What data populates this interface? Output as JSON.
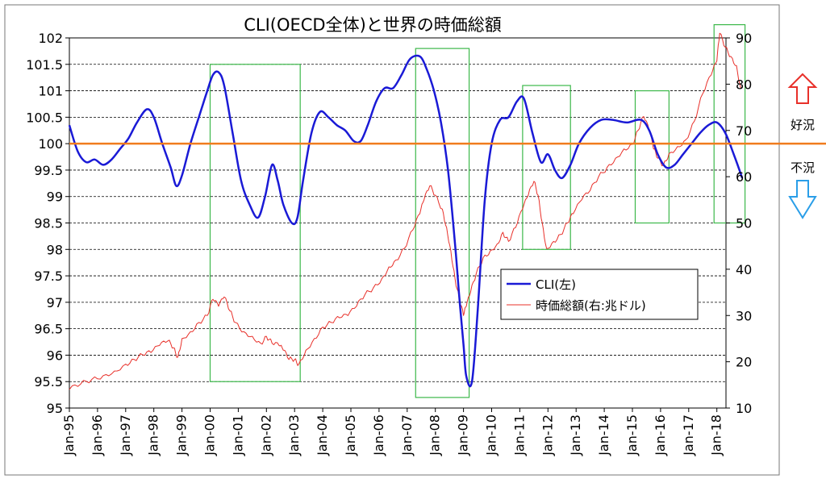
{
  "chart_data": {
    "type": "line",
    "title": "CLI(OECD全体)と世界の時価総額",
    "x_categories": [
      "Jan-95",
      "Jan-96",
      "Jan-97",
      "Jan-98",
      "Jan-99",
      "Jan-00",
      "Jan-01",
      "Jan-02",
      "Jan-03",
      "Jan-04",
      "Jan-05",
      "Jan-06",
      "Jan-07",
      "Jan-08",
      "Jan-09",
      "Jan-10",
      "Jan-11",
      "Jan-12",
      "Jan-13",
      "Jan-14",
      "Jan-15",
      "Jan-16",
      "Jan-17",
      "Jan-18"
    ],
    "y_left": {
      "min": 95,
      "max": 102,
      "ticks": [
        "95",
        "95.5",
        "96",
        "96.5",
        "97",
        "97.5",
        "98",
        "98.5",
        "99",
        "99.5",
        "100",
        "100.5",
        "101",
        "101.5",
        "102"
      ]
    },
    "y_right": {
      "min": 10,
      "max": 90,
      "ticks": [
        "10",
        "20",
        "30",
        "40",
        "50",
        "60",
        "70",
        "80",
        "90"
      ]
    },
    "grid": "horizontal dashed",
    "reference_line": {
      "value": 100,
      "color": "#f07c1e"
    },
    "series": [
      {
        "name": "CLI(左)",
        "axis": "left",
        "color": "#1a1ad6",
        "x": [
          1995.0,
          1995.3,
          1995.6,
          1995.9,
          1996.2,
          1996.5,
          1996.8,
          1997.1,
          1997.4,
          1997.75,
          1998.0,
          1998.3,
          1998.6,
          1998.8,
          1999.0,
          1999.3,
          1999.6,
          1999.9,
          2000.1,
          2000.3,
          2000.5,
          2000.8,
          2001.1,
          2001.4,
          2001.7,
          2001.95,
          2002.2,
          2002.4,
          2002.6,
          2002.9,
          2003.1,
          2003.3,
          2003.6,
          2003.9,
          2004.2,
          2004.5,
          2004.8,
          2005.1,
          2005.35,
          2005.6,
          2005.9,
          2006.2,
          2006.5,
          2006.8,
          2007.1,
          2007.45,
          2007.7,
          2007.95,
          2008.2,
          2008.45,
          2008.7,
          2008.85,
          2009.0,
          2009.1,
          2009.3,
          2009.5,
          2009.75,
          2010.0,
          2010.3,
          2010.6,
          2010.9,
          2011.15,
          2011.45,
          2011.75,
          2012.0,
          2012.25,
          2012.5,
          2012.8,
          2013.1,
          2013.5,
          2013.9,
          2014.3,
          2014.8,
          2015.3,
          2015.6,
          2015.9,
          2016.2,
          2016.5,
          2016.8,
          2017.1,
          2017.4,
          2017.7,
          2018.0,
          2018.3,
          2018.6,
          2018.9
        ],
        "y": [
          100.35,
          99.85,
          99.65,
          99.7,
          99.6,
          99.7,
          99.9,
          100.1,
          100.4,
          100.65,
          100.5,
          100.0,
          99.55,
          99.2,
          99.4,
          100.0,
          100.5,
          101.0,
          101.3,
          101.35,
          101.1,
          100.2,
          99.3,
          98.85,
          98.6,
          99.0,
          99.6,
          99.3,
          98.85,
          98.5,
          98.6,
          99.3,
          100.2,
          100.6,
          100.5,
          100.35,
          100.25,
          100.05,
          100.05,
          100.35,
          100.8,
          101.05,
          101.05,
          101.3,
          101.6,
          101.65,
          101.4,
          101.0,
          100.4,
          99.5,
          98.1,
          97.1,
          96.2,
          95.6,
          95.5,
          96.8,
          98.9,
          100.0,
          100.45,
          100.5,
          100.8,
          100.85,
          100.2,
          99.65,
          99.8,
          99.5,
          99.35,
          99.6,
          100.0,
          100.3,
          100.45,
          100.45,
          100.4,
          100.45,
          100.25,
          99.8,
          99.55,
          99.6,
          99.8,
          100.0,
          100.2,
          100.35,
          100.4,
          100.2,
          99.8,
          99.35
        ]
      },
      {
        "name": "時価総額(右:兆ドル)",
        "axis": "right",
        "color": "#e8302a",
        "x": [
          1995.0,
          1995.4,
          1995.8,
          1996.2,
          1996.6,
          1997.0,
          1997.3,
          1997.6,
          1997.9,
          1998.2,
          1998.5,
          1998.7,
          1998.85,
          1999.0,
          1999.3,
          1999.6,
          1999.9,
          2000.1,
          2000.3,
          2000.5,
          2000.7,
          2000.9,
          2001.2,
          2001.5,
          2001.8,
          2002.0,
          2002.2,
          2002.45,
          2002.6,
          2002.8,
          2003.0,
          2003.15,
          2003.4,
          2003.7,
          2004.0,
          2004.3,
          2004.6,
          2004.9,
          2005.2,
          2005.5,
          2005.8,
          2006.1,
          2006.35,
          2006.6,
          2006.9,
          2007.2,
          2007.45,
          2007.6,
          2007.8,
          2008.0,
          2008.25,
          2008.4,
          2008.55,
          2008.7,
          2008.85,
          2009.0,
          2009.1,
          2009.25,
          2009.45,
          2009.7,
          2009.95,
          2010.2,
          2010.4,
          2010.6,
          2010.85,
          2011.1,
          2011.3,
          2011.5,
          2011.65,
          2011.8,
          2011.95,
          2012.2,
          2012.45,
          2012.7,
          2012.9,
          2013.2,
          2013.5,
          2013.8,
          2014.1,
          2014.4,
          2014.7,
          2015.0,
          2015.2,
          2015.4,
          2015.6,
          2015.75,
          2015.9,
          2016.1,
          2016.3,
          2016.6,
          2016.9,
          2017.2,
          2017.5,
          2017.8,
          2018.0,
          2018.1,
          2018.3,
          2018.5,
          2018.7,
          2018.85
        ],
        "y": [
          14.0,
          15.2,
          16.2,
          17.0,
          18.0,
          19.5,
          20.5,
          21.5,
          22.0,
          23.5,
          24.5,
          23.0,
          21.0,
          25.0,
          26.5,
          28.5,
          30.0,
          33.5,
          32.0,
          34.0,
          31.0,
          28.5,
          26.5,
          25.5,
          24.0,
          25.5,
          24.0,
          23.5,
          22.5,
          20.5,
          20.5,
          19.5,
          22.5,
          25.0,
          27.5,
          28.5,
          29.5,
          30.0,
          32.0,
          34.5,
          36.0,
          38.0,
          40.5,
          42.0,
          44.5,
          48.5,
          52.0,
          55.0,
          58.0,
          56.0,
          53.0,
          49.0,
          44.0,
          38.0,
          33.5,
          30.0,
          32.0,
          35.0,
          39.0,
          42.5,
          44.0,
          45.5,
          48.0,
          46.0,
          49.0,
          53.0,
          56.0,
          59.0,
          56.0,
          50.0,
          44.5,
          46.0,
          47.5,
          50.0,
          52.0,
          55.0,
          57.0,
          60.0,
          62.0,
          64.0,
          66.0,
          67.0,
          70.0,
          73.0,
          70.0,
          66.0,
          64.0,
          62.5,
          65.0,
          66.5,
          68.0,
          72.0,
          78.0,
          82.0,
          85.0,
          91.0,
          88.0,
          86.0,
          84.0,
          79.0
        ]
      }
    ],
    "highlight_boxes": [
      {
        "x0": 2000.0,
        "x1": 2003.2,
        "y0_left": 101.5,
        "y1_left": 95.5
      },
      {
        "x0": 2007.3,
        "x1": 2009.2,
        "y0_left": 101.8,
        "y1_left": 95.2
      },
      {
        "x0": 2011.1,
        "x1": 2012.8,
        "y0_left": 101.1,
        "y1_left": 98.0
      },
      {
        "x0": 2015.1,
        "x1": 2016.3,
        "y0_left": 101.0,
        "y1_left": 98.5
      },
      {
        "x0": 2017.9,
        "x1": 2019.0,
        "y0_left": 102.25,
        "y1_left": 98.5
      }
    ],
    "legend": {
      "placement": "center-right",
      "entries": [
        "CLI(左)",
        "時価総額(右:兆ドル)"
      ]
    },
    "side_labels": {
      "up": "好況",
      "down": "不況",
      "up_arrow_color": "#e8302a",
      "down_arrow_color": "#2a9ee8"
    }
  }
}
